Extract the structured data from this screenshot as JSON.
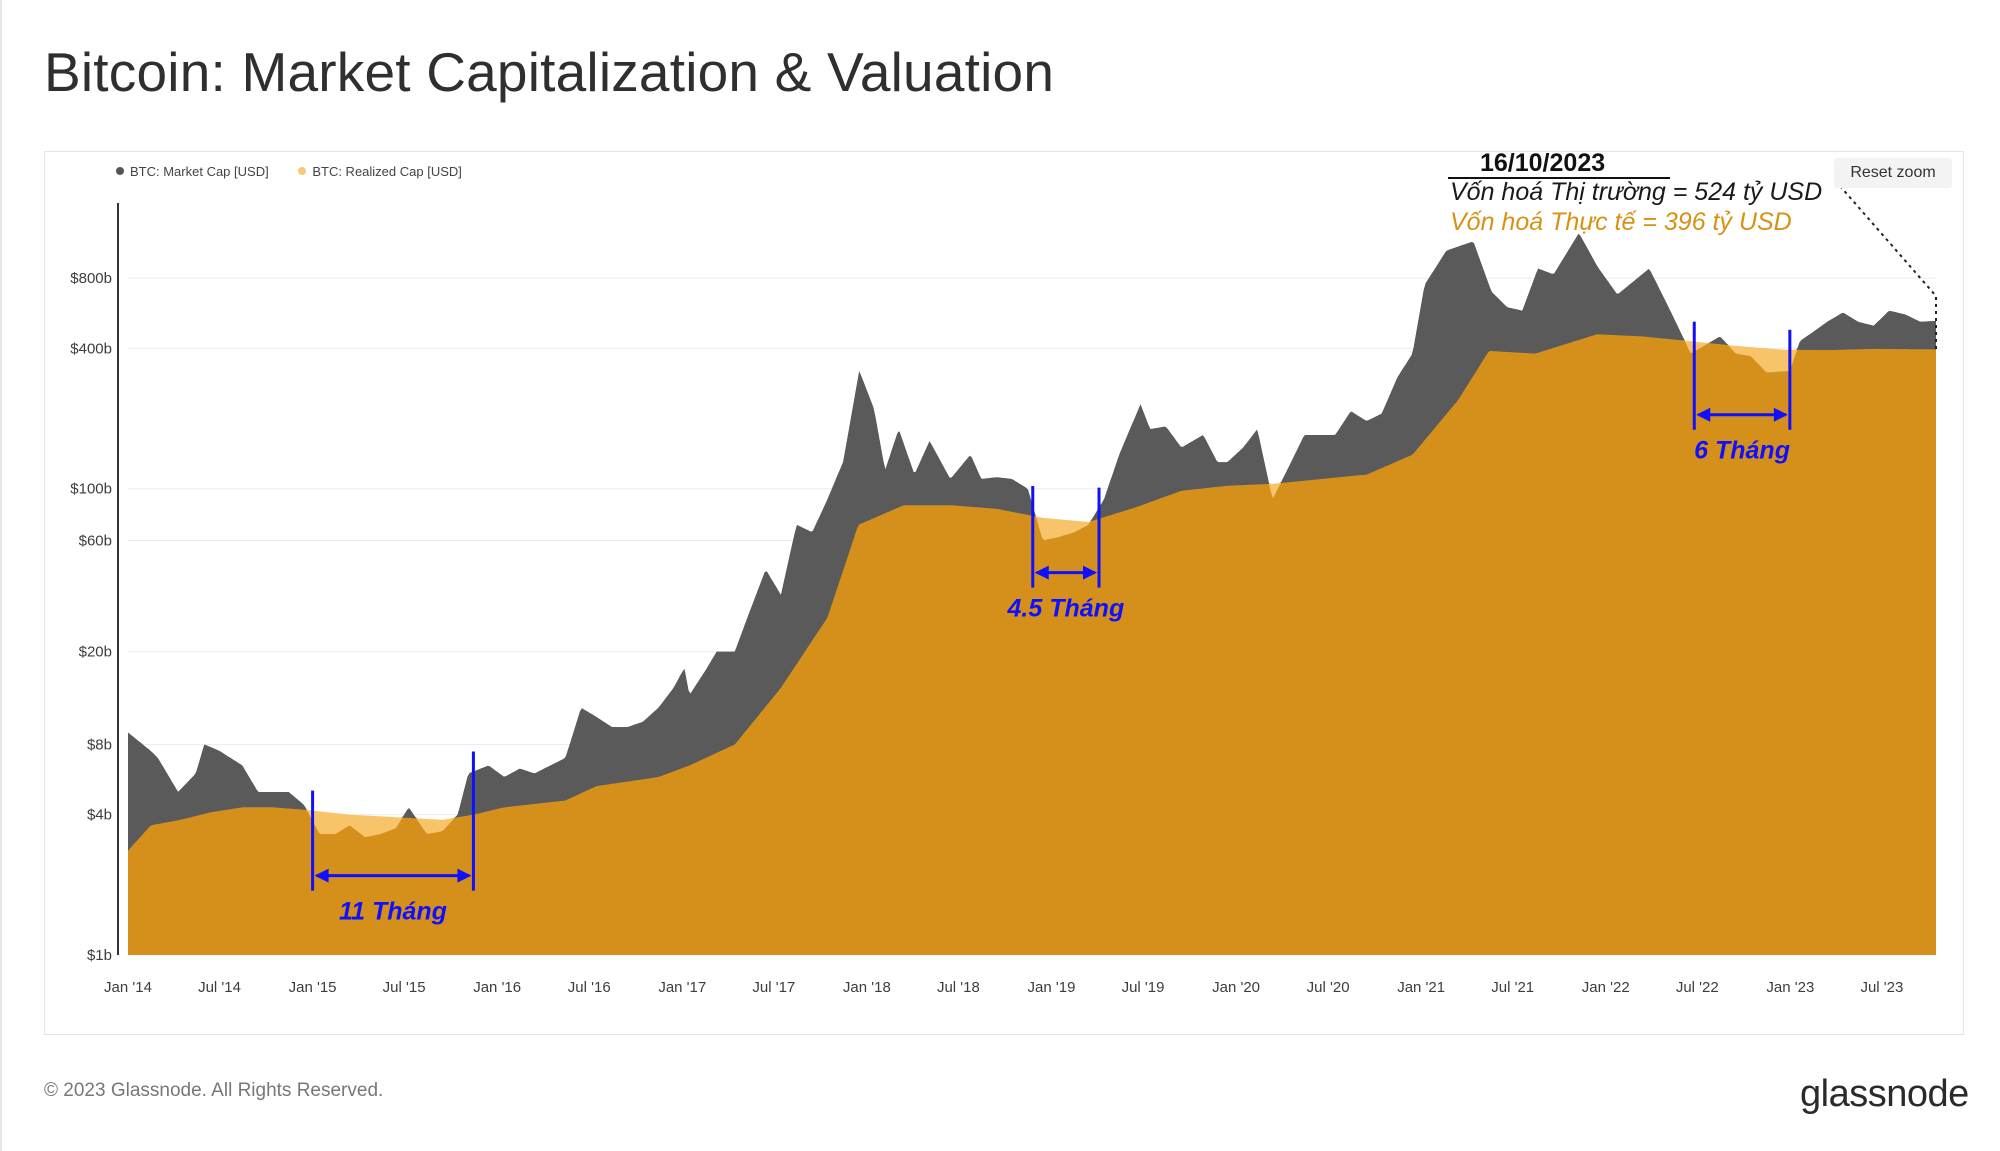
{
  "title": "Bitcoin: Market Capitalization & Valuation",
  "legend": [
    {
      "label": "BTC: Market Cap [USD]",
      "color": "#555555"
    },
    {
      "label": "BTC: Realized Cap [USD]",
      "color": "#f7c978"
    }
  ],
  "reset_zoom_label": "Reset zoom",
  "annotation": {
    "date": "16/10/2023",
    "market_cap_text": "Vốn hoá Thị trường = 524 tỷ USD",
    "realized_cap_text": "Vốn hoá Thực tế = 396 tỷ USD"
  },
  "footer": {
    "copyright": "© 2023 Glassnode. All Rights Reserved.",
    "brand": "glassnode"
  },
  "colors": {
    "market_cap": "#5a5a5a",
    "realized_cap_fill": "#d4901a",
    "realized_above": "#f8c46a",
    "marker": "#1010ff"
  },
  "chart_data": {
    "type": "area",
    "title": "Bitcoin: Market Capitalization & Valuation",
    "y_scale": "log",
    "ylim": [
      1,
      1600
    ],
    "y_unit": "billion USD",
    "y_ticks": [
      {
        "label": "$1b",
        "value": 1
      },
      {
        "label": "$4b",
        "value": 4
      },
      {
        "label": "$8b",
        "value": 8
      },
      {
        "label": "$20b",
        "value": 20
      },
      {
        "label": "$60b",
        "value": 60
      },
      {
        "label": "$100b",
        "value": 100
      },
      {
        "label": "$400b",
        "value": 400
      },
      {
        "label": "$800b",
        "value": 800
      }
    ],
    "x_ticks": [
      {
        "label": "Jan '14",
        "date": "2014-01-01"
      },
      {
        "label": "Jul '14",
        "date": "2014-07-01"
      },
      {
        "label": "Jan '15",
        "date": "2015-01-01"
      },
      {
        "label": "Jul '15",
        "date": "2015-07-01"
      },
      {
        "label": "Jan '16",
        "date": "2016-01-01"
      },
      {
        "label": "Jul '16",
        "date": "2016-07-01"
      },
      {
        "label": "Jan '17",
        "date": "2017-01-01"
      },
      {
        "label": "Jul '17",
        "date": "2017-07-01"
      },
      {
        "label": "Jan '18",
        "date": "2018-01-01"
      },
      {
        "label": "Jul '18",
        "date": "2018-07-01"
      },
      {
        "label": "Jan '19",
        "date": "2019-01-01"
      },
      {
        "label": "Jul '19",
        "date": "2019-07-01"
      },
      {
        "label": "Jan '20",
        "date": "2020-01-01"
      },
      {
        "label": "Jul '20",
        "date": "2020-07-01"
      },
      {
        "label": "Jan '21",
        "date": "2021-01-01"
      },
      {
        "label": "Jul '21",
        "date": "2021-07-01"
      },
      {
        "label": "Jan '22",
        "date": "2022-01-01"
      },
      {
        "label": "Jul '22",
        "date": "2022-07-01"
      },
      {
        "label": "Jan '23",
        "date": "2023-01-01"
      },
      {
        "label": "Jul '23",
        "date": "2023-07-01"
      }
    ],
    "x_range": [
      "2014-01-01",
      "2023-10-16"
    ],
    "grid": true,
    "legend_position": "top-left",
    "series": [
      {
        "name": "BTC: Market Cap [USD]",
        "points": [
          [
            "2014-01-01",
            9.0
          ],
          [
            "2014-02-15",
            7.5
          ],
          [
            "2014-03-01",
            7.0
          ],
          [
            "2014-04-10",
            5.0
          ],
          [
            "2014-05-15",
            6.0
          ],
          [
            "2014-06-01",
            8.0
          ],
          [
            "2014-07-01",
            7.5
          ],
          [
            "2014-08-15",
            6.5
          ],
          [
            "2014-09-15",
            5.0
          ],
          [
            "2014-10-15",
            5.0
          ],
          [
            "2014-11-15",
            5.0
          ],
          [
            "2014-12-15",
            4.4
          ],
          [
            "2015-01-15",
            3.3
          ],
          [
            "2015-02-15",
            3.3
          ],
          [
            "2015-03-15",
            3.6
          ],
          [
            "2015-04-15",
            3.2
          ],
          [
            "2015-05-15",
            3.3
          ],
          [
            "2015-06-15",
            3.5
          ],
          [
            "2015-07-10",
            4.3
          ],
          [
            "2015-08-15",
            3.3
          ],
          [
            "2015-09-15",
            3.4
          ],
          [
            "2015-10-15",
            4.0
          ],
          [
            "2015-11-05",
            6.0
          ],
          [
            "2015-12-15",
            6.5
          ],
          [
            "2016-01-15",
            5.8
          ],
          [
            "2016-02-15",
            6.3
          ],
          [
            "2016-03-15",
            6.0
          ],
          [
            "2016-04-15",
            6.5
          ],
          [
            "2016-05-15",
            7.0
          ],
          [
            "2016-06-15",
            11.5
          ],
          [
            "2016-07-15",
            10.5
          ],
          [
            "2016-08-15",
            9.5
          ],
          [
            "2016-09-15",
            9.5
          ],
          [
            "2016-10-15",
            10.0
          ],
          [
            "2016-11-15",
            11.5
          ],
          [
            "2016-12-15",
            14.0
          ],
          [
            "2017-01-05",
            17.0
          ],
          [
            "2017-01-15",
            13.0
          ],
          [
            "2017-02-15",
            16.5
          ],
          [
            "2017-03-10",
            20.0
          ],
          [
            "2017-04-15",
            20.0
          ],
          [
            "2017-05-15",
            30.0
          ],
          [
            "2017-06-15",
            45.0
          ],
          [
            "2017-07-15",
            35.0
          ],
          [
            "2017-08-15",
            70.0
          ],
          [
            "2017-09-15",
            65.0
          ],
          [
            "2017-10-15",
            90.0
          ],
          [
            "2017-11-15",
            130.0
          ],
          [
            "2017-12-17",
            320.0
          ],
          [
            "2018-01-15",
            220.0
          ],
          [
            "2018-02-06",
            120.0
          ],
          [
            "2018-03-05",
            180.0
          ],
          [
            "2018-04-05",
            115.0
          ],
          [
            "2018-05-05",
            160.0
          ],
          [
            "2018-06-15",
            110.0
          ],
          [
            "2018-07-25",
            140.0
          ],
          [
            "2018-08-15",
            110.0
          ],
          [
            "2018-09-15",
            112.0
          ],
          [
            "2018-10-15",
            110.0
          ],
          [
            "2018-11-15",
            100.0
          ],
          [
            "2018-12-15",
            60.0
          ],
          [
            "2019-01-15",
            62.0
          ],
          [
            "2019-02-15",
            65.0
          ],
          [
            "2019-03-15",
            70.0
          ],
          [
            "2019-04-15",
            90.0
          ],
          [
            "2019-05-15",
            140.0
          ],
          [
            "2019-06-26",
            230.0
          ],
          [
            "2019-07-15",
            180.0
          ],
          [
            "2019-08-15",
            185.0
          ],
          [
            "2019-09-15",
            150.0
          ],
          [
            "2019-10-28",
            170.0
          ],
          [
            "2019-11-25",
            130.0
          ],
          [
            "2019-12-15",
            130.0
          ],
          [
            "2020-01-15",
            150.0
          ],
          [
            "2020-02-12",
            180.0
          ],
          [
            "2020-03-13",
            90.0
          ],
          [
            "2020-04-15",
            125.0
          ],
          [
            "2020-05-15",
            170.0
          ],
          [
            "2020-06-15",
            170.0
          ],
          [
            "2020-07-15",
            170.0
          ],
          [
            "2020-08-15",
            215.0
          ],
          [
            "2020-09-15",
            195.0
          ],
          [
            "2020-10-15",
            210.0
          ],
          [
            "2020-11-15",
            300.0
          ],
          [
            "2020-12-15",
            380.0
          ],
          [
            "2021-01-08",
            750.0
          ],
          [
            "2021-02-20",
            1050.0
          ],
          [
            "2021-04-14",
            1150.0
          ],
          [
            "2021-05-20",
            700.0
          ],
          [
            "2021-06-20",
            600.0
          ],
          [
            "2021-07-20",
            580.0
          ],
          [
            "2021-08-20",
            880.0
          ],
          [
            "2021-09-20",
            830.0
          ],
          [
            "2021-11-09",
            1250.0
          ],
          [
            "2021-12-15",
            900.0
          ],
          [
            "2022-01-24",
            680.0
          ],
          [
            "2022-03-28",
            880.0
          ],
          [
            "2022-05-12",
            560.0
          ],
          [
            "2022-06-18",
            380.0
          ],
          [
            "2022-08-15",
            450.0
          ],
          [
            "2022-09-15",
            380.0
          ],
          [
            "2022-10-15",
            370.0
          ],
          [
            "2022-11-15",
            315.0
          ],
          [
            "2022-12-31",
            320.0
          ],
          [
            "2023-01-20",
            430.0
          ],
          [
            "2023-02-15",
            470.0
          ],
          [
            "2023-03-15",
            520.0
          ],
          [
            "2023-04-15",
            570.0
          ],
          [
            "2023-05-15",
            520.0
          ],
          [
            "2023-06-15",
            500.0
          ],
          [
            "2023-07-15",
            580.0
          ],
          [
            "2023-08-15",
            560.0
          ],
          [
            "2023-09-15",
            520.0
          ],
          [
            "2023-10-16",
            524.0
          ]
        ]
      },
      {
        "name": "BTC: Realized Cap [USD]",
        "points": [
          [
            "2014-01-01",
            2.8
          ],
          [
            "2014-02-15",
            3.6
          ],
          [
            "2014-04-15",
            3.8
          ],
          [
            "2014-06-15",
            4.1
          ],
          [
            "2014-08-15",
            4.3
          ],
          [
            "2014-10-15",
            4.3
          ],
          [
            "2014-12-15",
            4.2
          ],
          [
            "2015-03-15",
            4.0
          ],
          [
            "2015-06-15",
            3.9
          ],
          [
            "2015-09-15",
            3.8
          ],
          [
            "2015-11-15",
            4.0
          ],
          [
            "2016-01-15",
            4.3
          ],
          [
            "2016-05-15",
            4.6
          ],
          [
            "2016-07-15",
            5.3
          ],
          [
            "2016-11-15",
            5.8
          ],
          [
            "2017-01-15",
            6.5
          ],
          [
            "2017-04-15",
            8.0
          ],
          [
            "2017-07-15",
            14.0
          ],
          [
            "2017-10-15",
            28.0
          ],
          [
            "2017-12-15",
            70.0
          ],
          [
            "2018-03-15",
            85.0
          ],
          [
            "2018-06-15",
            85.0
          ],
          [
            "2018-09-15",
            82.0
          ],
          [
            "2018-12-15",
            75.0
          ],
          [
            "2019-03-15",
            72.0
          ],
          [
            "2019-06-15",
            83.0
          ],
          [
            "2019-09-15",
            98.0
          ],
          [
            "2019-12-15",
            103.0
          ],
          [
            "2020-03-15",
            105.0
          ],
          [
            "2020-06-15",
            110.0
          ],
          [
            "2020-09-15",
            115.0
          ],
          [
            "2020-12-15",
            140.0
          ],
          [
            "2021-03-15",
            240.0
          ],
          [
            "2021-05-15",
            390.0
          ],
          [
            "2021-08-15",
            380.0
          ],
          [
            "2021-12-15",
            460.0
          ],
          [
            "2022-03-15",
            450.0
          ],
          [
            "2022-06-15",
            430.0
          ],
          [
            "2022-09-15",
            410.0
          ],
          [
            "2022-12-15",
            395.0
          ],
          [
            "2023-03-15",
            393.0
          ],
          [
            "2023-06-15",
            398.0
          ],
          [
            "2023-10-16",
            396.0
          ]
        ]
      }
    ],
    "periods": [
      {
        "label": "11 Tháng",
        "start": "2015-01-01",
        "end": "2015-11-15"
      },
      {
        "label": "4.5 Tháng",
        "start": "2018-11-25",
        "end": "2019-04-05"
      },
      {
        "label": "6 Tháng",
        "start": "2022-06-25",
        "end": "2022-12-31"
      }
    ]
  }
}
